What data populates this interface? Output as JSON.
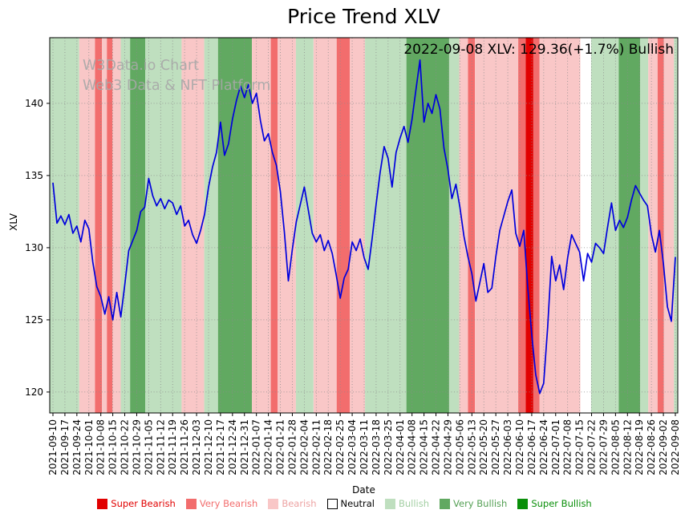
{
  "title": "Price Trend XLV",
  "watermark": {
    "line1": "W3Data.io Chart",
    "line2": "Web3 Data & NFT Platform"
  },
  "annotation": {
    "text": "2022-09-08 XLV: 129.36(+1.7%) Bullish",
    "date": "2022-09-08",
    "ticker": "XLV",
    "price": 129.36,
    "change_pct": "+1.7%",
    "sentiment": "Bullish"
  },
  "chart_data": {
    "type": "line",
    "title": "Price Trend XLV",
    "xlabel": "Date",
    "ylabel": "XLV",
    "ylim": [
      118.55,
      144.55
    ],
    "y_ticks": [
      120,
      125,
      130,
      135,
      140
    ],
    "grid": true,
    "x_start": "2021-09-10",
    "x_end": "2022-09-08",
    "points_per_x_tick": 3,
    "x_tick_labels": [
      "2021-09-10",
      "2021-09-17",
      "2021-09-24",
      "2021-10-01",
      "2021-10-08",
      "2021-10-15",
      "2021-10-22",
      "2021-10-29",
      "2021-11-05",
      "2021-11-12",
      "2021-11-19",
      "2021-11-26",
      "2021-12-03",
      "2021-12-10",
      "2021-12-17",
      "2021-12-24",
      "2021-12-31",
      "2022-01-07",
      "2022-01-14",
      "2022-01-21",
      "2022-01-28",
      "2022-02-04",
      "2022-02-11",
      "2022-02-18",
      "2022-02-25",
      "2022-03-04",
      "2022-03-11",
      "2022-03-18",
      "2022-03-25",
      "2022-04-01",
      "2022-04-08",
      "2022-04-15",
      "2022-04-22",
      "2022-04-29",
      "2022-05-06",
      "2022-05-13",
      "2022-05-20",
      "2022-05-27",
      "2022-06-03",
      "2022-06-10",
      "2022-06-17",
      "2022-06-24",
      "2022-07-01",
      "2022-07-08",
      "2022-07-15",
      "2022-07-22",
      "2022-07-29",
      "2022-08-05",
      "2022-08-12",
      "2022-08-19",
      "2022-08-26",
      "2022-09-02",
      "2022-09-08"
    ],
    "series": [
      {
        "name": "XLV",
        "color": "#0000dd",
        "values": [
          134.5,
          131.7,
          132.2,
          131.6,
          132.3,
          131.0,
          131.5,
          130.4,
          131.9,
          131.3,
          129.0,
          127.3,
          126.6,
          125.4,
          126.6,
          125.0,
          126.9,
          125.2,
          127.4,
          129.8,
          130.5,
          131.2,
          132.5,
          132.8,
          134.8,
          133.6,
          132.9,
          133.4,
          132.7,
          133.3,
          133.1,
          132.3,
          132.9,
          131.5,
          131.9,
          130.9,
          130.3,
          131.2,
          132.3,
          134.2,
          135.6,
          136.6,
          138.7,
          136.4,
          137.2,
          138.9,
          140.2,
          141.2,
          140.4,
          141.3,
          140.0,
          140.7,
          138.8,
          137.4,
          137.9,
          136.6,
          135.7,
          133.9,
          131.1,
          127.7,
          129.9,
          131.8,
          133.0,
          134.2,
          132.6,
          131.0,
          130.4,
          130.9,
          129.8,
          130.5,
          129.6,
          128.1,
          126.5,
          127.9,
          128.5,
          130.4,
          129.8,
          130.6,
          129.3,
          128.5,
          130.6,
          133.0,
          135.2,
          137.0,
          136.2,
          134.2,
          136.6,
          137.6,
          138.4,
          137.3,
          138.9,
          141.0,
          143.0,
          138.7,
          140.0,
          139.3,
          140.6,
          139.6,
          136.9,
          135.4,
          133.4,
          134.4,
          132.8,
          130.8,
          129.4,
          128.2,
          126.3,
          127.6,
          128.9,
          126.9,
          127.2,
          129.4,
          131.2,
          132.2,
          133.2,
          134.0,
          131.0,
          130.1,
          131.2,
          127.3,
          124.0,
          121.2,
          119.9,
          120.6,
          124.5,
          129.4,
          127.7,
          128.8,
          127.1,
          129.3,
          130.9,
          130.3,
          129.7,
          127.7,
          129.6,
          129.0,
          130.3,
          130.0,
          129.6,
          131.4,
          133.1,
          131.2,
          131.9,
          131.4,
          132.1,
          133.3,
          134.3,
          133.8,
          133.3,
          132.9,
          130.9,
          129.7,
          131.2,
          128.9,
          125.9,
          124.9,
          129.36
        ]
      }
    ],
    "band_colors": {
      "super_bearish": "#e10000",
      "very_bearish": "#f26d6d",
      "bearish": "#f9c7c7",
      "neutral": "#ffffff",
      "bullish": "#bfdfbf",
      "very_bullish": "#61a961",
      "super_bullish": "#0a8f0a"
    },
    "background_bands": [
      {
        "start": 0.0,
        "end": 0.047,
        "sentiment": "bullish"
      },
      {
        "start": 0.047,
        "end": 0.072,
        "sentiment": "bearish"
      },
      {
        "start": 0.072,
        "end": 0.083,
        "sentiment": "very_bearish"
      },
      {
        "start": 0.083,
        "end": 0.091,
        "sentiment": "bearish"
      },
      {
        "start": 0.091,
        "end": 0.1,
        "sentiment": "very_bearish"
      },
      {
        "start": 0.1,
        "end": 0.113,
        "sentiment": "bearish"
      },
      {
        "start": 0.113,
        "end": 0.128,
        "sentiment": "bullish"
      },
      {
        "start": 0.128,
        "end": 0.152,
        "sentiment": "very_bullish"
      },
      {
        "start": 0.152,
        "end": 0.21,
        "sentiment": "bullish"
      },
      {
        "start": 0.21,
        "end": 0.246,
        "sentiment": "bearish"
      },
      {
        "start": 0.246,
        "end": 0.268,
        "sentiment": "bullish"
      },
      {
        "start": 0.268,
        "end": 0.322,
        "sentiment": "very_bullish"
      },
      {
        "start": 0.322,
        "end": 0.352,
        "sentiment": "bearish"
      },
      {
        "start": 0.352,
        "end": 0.363,
        "sentiment": "very_bearish"
      },
      {
        "start": 0.363,
        "end": 0.392,
        "sentiment": "bearish"
      },
      {
        "start": 0.392,
        "end": 0.42,
        "sentiment": "bullish"
      },
      {
        "start": 0.42,
        "end": 0.457,
        "sentiment": "bearish"
      },
      {
        "start": 0.457,
        "end": 0.478,
        "sentiment": "very_bearish"
      },
      {
        "start": 0.478,
        "end": 0.502,
        "sentiment": "bearish"
      },
      {
        "start": 0.502,
        "end": 0.568,
        "sentiment": "bullish"
      },
      {
        "start": 0.568,
        "end": 0.636,
        "sentiment": "very_bullish"
      },
      {
        "start": 0.636,
        "end": 0.652,
        "sentiment": "bullish"
      },
      {
        "start": 0.652,
        "end": 0.666,
        "sentiment": "bearish"
      },
      {
        "start": 0.666,
        "end": 0.677,
        "sentiment": "very_bearish"
      },
      {
        "start": 0.677,
        "end": 0.746,
        "sentiment": "bearish"
      },
      {
        "start": 0.746,
        "end": 0.758,
        "sentiment": "very_bearish"
      },
      {
        "start": 0.758,
        "end": 0.77,
        "sentiment": "super_bearish"
      },
      {
        "start": 0.77,
        "end": 0.78,
        "sentiment": "very_bearish"
      },
      {
        "start": 0.78,
        "end": 0.845,
        "sentiment": "bearish"
      },
      {
        "start": 0.845,
        "end": 0.862,
        "sentiment": "neutral"
      },
      {
        "start": 0.862,
        "end": 0.906,
        "sentiment": "bullish"
      },
      {
        "start": 0.906,
        "end": 0.94,
        "sentiment": "very_bullish"
      },
      {
        "start": 0.94,
        "end": 0.953,
        "sentiment": "bullish"
      },
      {
        "start": 0.953,
        "end": 0.968,
        "sentiment": "bearish"
      },
      {
        "start": 0.968,
        "end": 0.978,
        "sentiment": "very_bearish"
      },
      {
        "start": 0.978,
        "end": 0.994,
        "sentiment": "bearish"
      },
      {
        "start": 0.994,
        "end": 1.0,
        "sentiment": "bullish"
      }
    ]
  },
  "legend": {
    "items": [
      {
        "label": "Super Bearish",
        "color": "#e10000",
        "text_color": "#e10000"
      },
      {
        "label": "Very Bearish",
        "color": "#f26d6d",
        "text_color": "#f26d6d"
      },
      {
        "label": "Bearish",
        "color": "#f9c7c7",
        "text_color": "#eda3a3"
      },
      {
        "label": "Neutral",
        "color": "#ffffff",
        "text_color": "#000000",
        "border": "#000000"
      },
      {
        "label": "Bullish",
        "color": "#bfdfbf",
        "text_color": "#a3cfa3"
      },
      {
        "label": "Very Bullish",
        "color": "#61a961",
        "text_color": "#55a055"
      },
      {
        "label": "Super Bullish",
        "color": "#0a8f0a",
        "text_color": "#0a8f0a"
      }
    ]
  }
}
